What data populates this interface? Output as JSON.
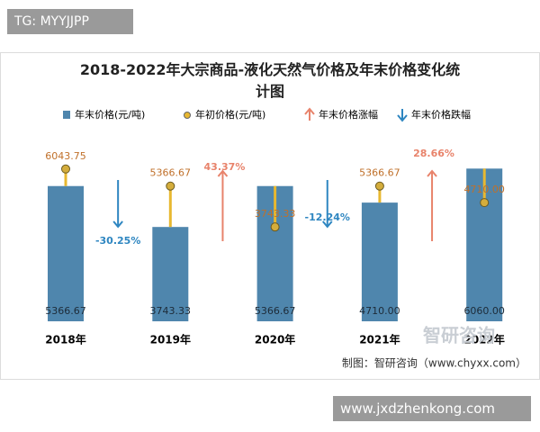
{
  "chart_data": {
    "type": "bar",
    "title": "2018-2022年大宗商品-液化天然气价格及年末价格变化统计图",
    "categories": [
      "2018年",
      "2019年",
      "2020年",
      "2021年",
      "2022年"
    ],
    "series": [
      {
        "name": "年末价格(元/吨)",
        "color": "#4f86ad",
        "values": [
          5366.67,
          3743.33,
          5366.67,
          4710.0,
          6060.0
        ],
        "value_labels": [
          "5366.67",
          "3743.33",
          "5366.67",
          "4710.00",
          "6060.00"
        ]
      },
      {
        "name": "年初价格(元/吨)",
        "color": "#e8b830",
        "values": [
          6043.75,
          5366.67,
          3743.33,
          5366.67,
          4710.0
        ],
        "value_labels": [
          "6043.75",
          "5366.67",
          "3743.33",
          "5366.67",
          "4710.00"
        ]
      }
    ],
    "changes": {
      "values": [
        -30.25,
        43.37,
        -12.24,
        28.66
      ],
      "value_labels": [
        "-30.25%",
        "43.37%",
        "-12.24%",
        "28.66%"
      ],
      "up_name": "年末价格涨幅",
      "down_name": "年末价格跌幅",
      "up_color": "#e8836b",
      "down_color": "#2e86c1"
    },
    "ylim": [
      0,
      7000
    ],
    "source": "制图：智研咨询（www.chyxx.com）"
  },
  "watermarks": {
    "top_left": "TG: MYYJJPP",
    "logo": "智研咨询",
    "bottom_right": "www.jxdzhenkong.com"
  }
}
